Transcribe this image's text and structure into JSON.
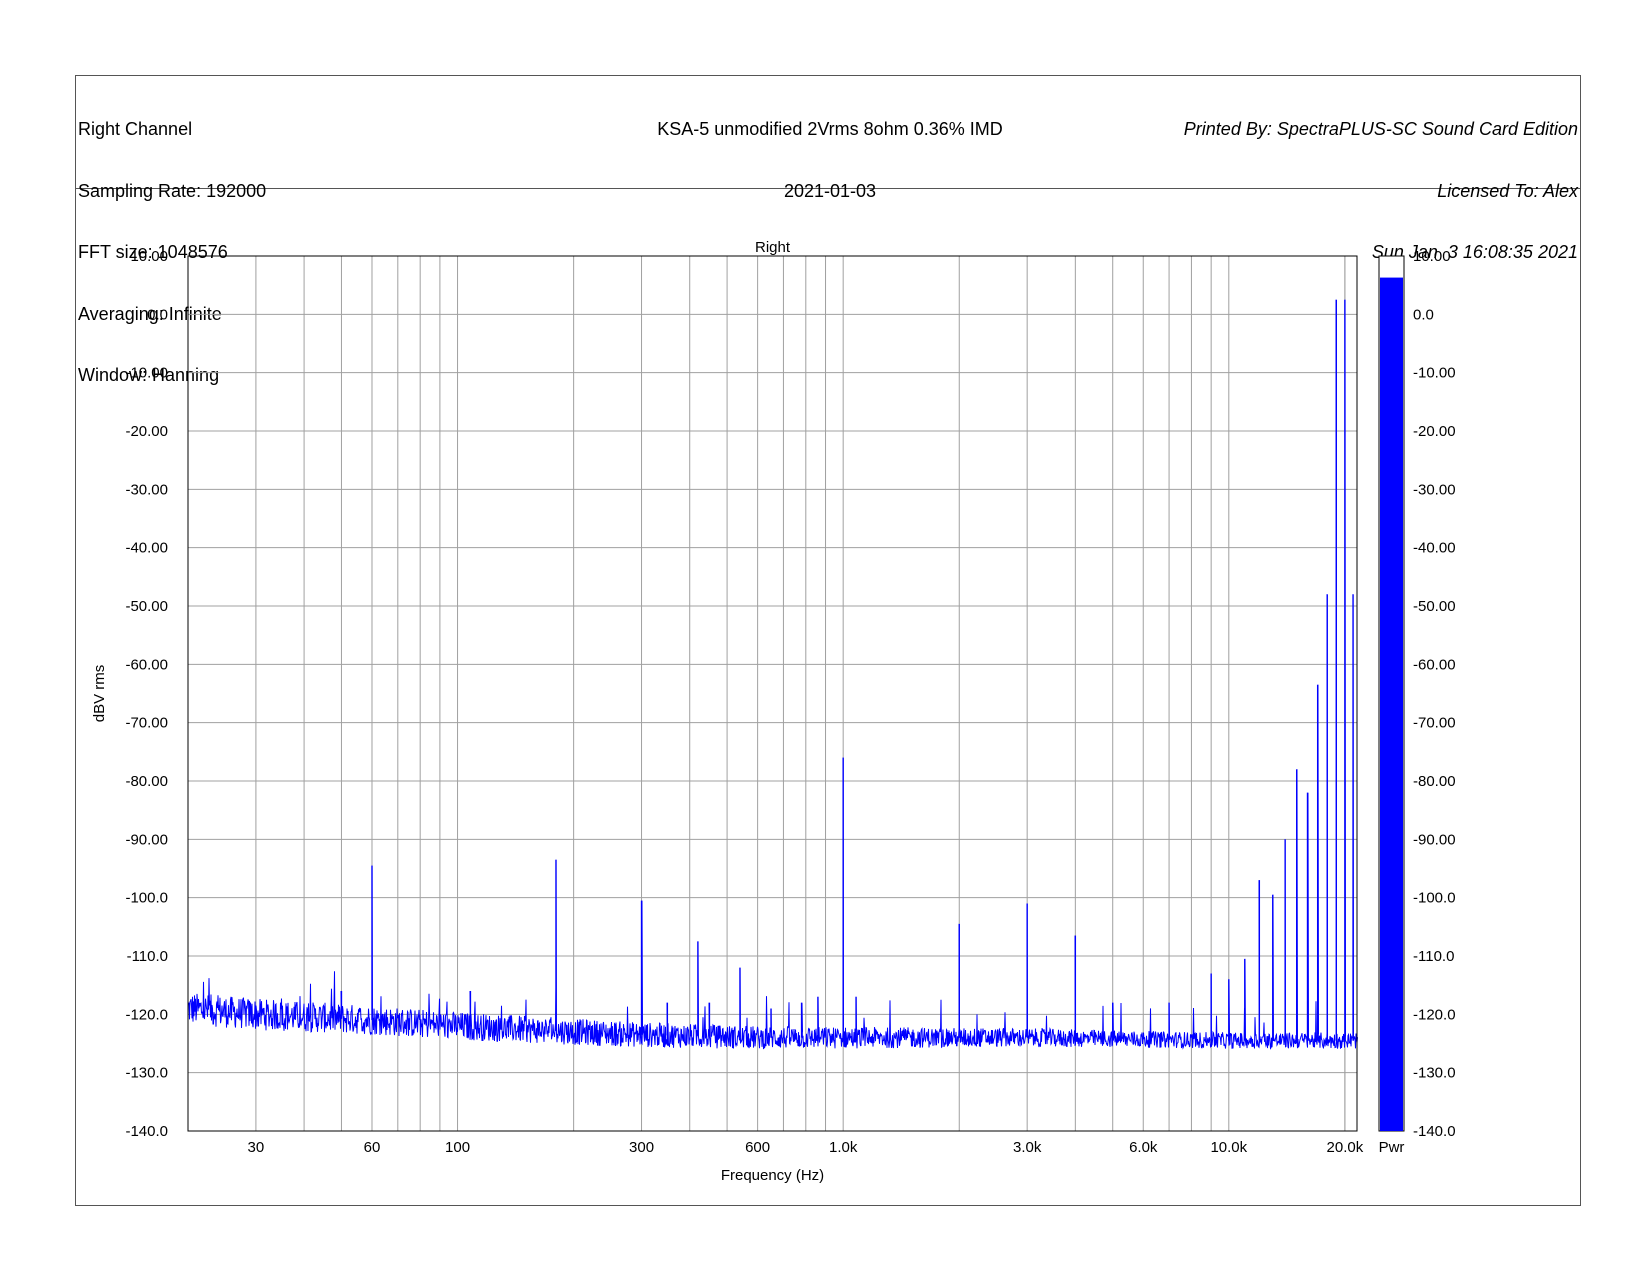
{
  "header": {
    "left": [
      "Right Channel",
      "Sampling Rate: 192000",
      "FFT size: 1048576",
      "Averaging: Infinite",
      "Window: Hanning"
    ],
    "center": [
      "KSA-5 unmodified 2Vrms 8ohm 0.36% IMD",
      "2021-01-03"
    ],
    "right": [
      "Printed By: SpectraPLUS-SC Sound Card Edition",
      "Licensed To: Alex",
      "Sun Jan  3 16:08:35 2021"
    ]
  },
  "colors": {
    "trace": "#0000ff",
    "grid": "#a0a0a0",
    "frame": "#555555",
    "meter": "#0000ff"
  },
  "meter": {
    "label": "Pwr",
    "level_dBV": 6.3,
    "range": [
      -140,
      10
    ]
  },
  "chart_data": {
    "type": "line",
    "title": "Right",
    "xlabel": "Frequency (Hz)",
    "ylabel": "dBV rms",
    "xscale": "log",
    "xlim": [
      20,
      21500
    ],
    "ylim": [
      -140,
      10
    ],
    "grid": true,
    "yticks": [
      "10.00",
      "0.0",
      "-10.00",
      "-20.00",
      "-30.00",
      "-40.00",
      "-50.00",
      "-60.00",
      "-70.00",
      "-80.00",
      "-90.00",
      "-100.0",
      "-110.0",
      "-120.0",
      "-130.0",
      "-140.0"
    ],
    "xticks": [
      {
        "value": 30,
        "label": "30"
      },
      {
        "value": 60,
        "label": "60"
      },
      {
        "value": 100,
        "label": "100"
      },
      {
        "value": 300,
        "label": "300"
      },
      {
        "value": 600,
        "label": "600"
      },
      {
        "value": 1000,
        "label": "1.0k"
      },
      {
        "value": 3000,
        "label": "3.0k"
      },
      {
        "value": 6000,
        "label": "6.0k"
      },
      {
        "value": 10000,
        "label": "10.0k"
      },
      {
        "value": 20000,
        "label": "20.0k"
      }
    ],
    "series": [
      {
        "noise_floor": [
          [
            20,
            -119
          ],
          [
            30,
            -120
          ],
          [
            60,
            -121
          ],
          [
            100,
            -122
          ],
          [
            200,
            -123
          ],
          [
            300,
            -123.5
          ],
          [
            600,
            -124
          ],
          [
            1000,
            -124
          ],
          [
            3000,
            -124
          ],
          [
            10000,
            -124.5
          ],
          [
            21500,
            -124.5
          ]
        ],
        "peaks": [
          {
            "freq": 50,
            "dbv": -116
          },
          {
            "freq": 60,
            "dbv": -94.5
          },
          {
            "freq": 108,
            "dbv": -116
          },
          {
            "freq": 180,
            "dbv": -93.5
          },
          {
            "freq": 300,
            "dbv": -100.5
          },
          {
            "freq": 350,
            "dbv": -118
          },
          {
            "freq": 420,
            "dbv": -107.5
          },
          {
            "freq": 450,
            "dbv": -118
          },
          {
            "freq": 540,
            "dbv": -112
          },
          {
            "freq": 650,
            "dbv": -119
          },
          {
            "freq": 780,
            "dbv": -118
          },
          {
            "freq": 860,
            "dbv": -117
          },
          {
            "freq": 1000,
            "dbv": -76
          },
          {
            "freq": 1080,
            "dbv": -117
          },
          {
            "freq": 2000,
            "dbv": -104.5
          },
          {
            "freq": 3000,
            "dbv": -101
          },
          {
            "freq": 4000,
            "dbv": -106.5
          },
          {
            "freq": 5000,
            "dbv": -118
          },
          {
            "freq": 7000,
            "dbv": -118
          },
          {
            "freq": 9000,
            "dbv": -113
          },
          {
            "freq": 10000,
            "dbv": -114
          },
          {
            "freq": 11000,
            "dbv": -110.5
          },
          {
            "freq": 12000,
            "dbv": -97
          },
          {
            "freq": 13000,
            "dbv": -99.5
          },
          {
            "freq": 14000,
            "dbv": -90
          },
          {
            "freq": 15000,
            "dbv": -78
          },
          {
            "freq": 16000,
            "dbv": -82
          },
          {
            "freq": 17000,
            "dbv": -63.5
          },
          {
            "freq": 18000,
            "dbv": -48
          },
          {
            "freq": 19000,
            "dbv": 2.5
          },
          {
            "freq": 20000,
            "dbv": 2.5
          },
          {
            "freq": 21000,
            "dbv": -48
          }
        ]
      }
    ]
  }
}
